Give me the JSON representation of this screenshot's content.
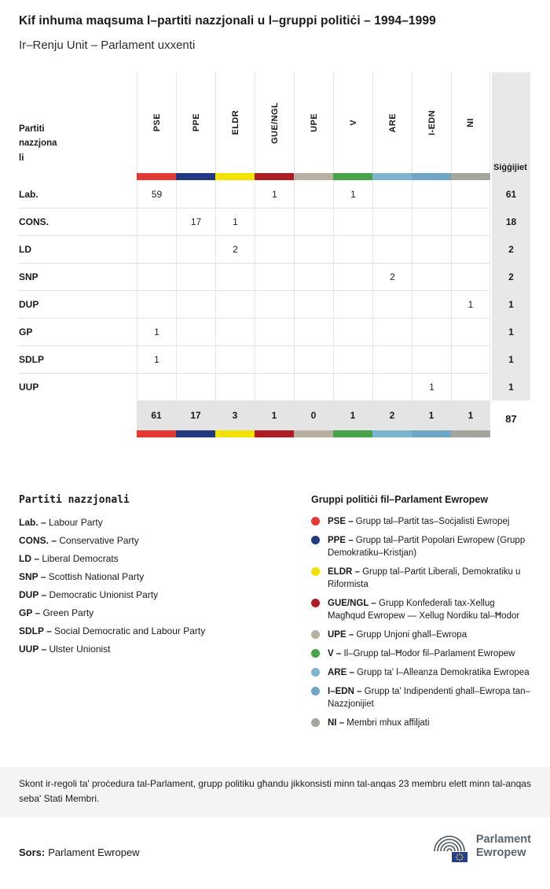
{
  "title": "Kif inhuma maqsuma l–partiti nazzjonali u l–gruppi politiċi – 1994–1999",
  "subtitle": "Ir–Renju Unit – Parlament uxxenti",
  "table": {
    "row_header_label": "Partiti\nnazzjona\nli",
    "seats_label": "Siġġijiet"
  },
  "chart_data": {
    "type": "table",
    "title": "Kif inhuma maqsuma l–partiti nazzjonali u l–gruppi politiċi – 1994–1999",
    "subtitle": "Ir–Renju Unit – Parlament uxxenti",
    "groups": [
      {
        "code": "PSE",
        "color": "#e23a33"
      },
      {
        "code": "PPE",
        "color": "#233a80"
      },
      {
        "code": "ELDR",
        "color": "#f3e200"
      },
      {
        "code": "GUE/NGL",
        "color": "#ad1d23"
      },
      {
        "code": "UPE",
        "color": "#b7b0a2"
      },
      {
        "code": "V",
        "color": "#47a44b"
      },
      {
        "code": "ARE",
        "color": "#7db4d0"
      },
      {
        "code": "I-EDN",
        "color": "#6ea6c6"
      },
      {
        "code": "NI",
        "color": "#a5a59d"
      }
    ],
    "rows": [
      {
        "party": "Lab.",
        "values": [
          59,
          null,
          null,
          1,
          null,
          1,
          null,
          null,
          null
        ],
        "total": 61
      },
      {
        "party": "CONS.",
        "values": [
          null,
          17,
          1,
          null,
          null,
          null,
          null,
          null,
          null
        ],
        "total": 18
      },
      {
        "party": "LD",
        "values": [
          null,
          null,
          2,
          null,
          null,
          null,
          null,
          null,
          null
        ],
        "total": 2
      },
      {
        "party": "SNP",
        "values": [
          null,
          null,
          null,
          null,
          null,
          null,
          2,
          null,
          null
        ],
        "total": 2
      },
      {
        "party": "DUP",
        "values": [
          null,
          null,
          null,
          null,
          null,
          null,
          null,
          null,
          1
        ],
        "total": 1
      },
      {
        "party": "GP",
        "values": [
          1,
          null,
          null,
          null,
          null,
          null,
          null,
          null,
          null
        ],
        "total": 1
      },
      {
        "party": "SDLP",
        "values": [
          1,
          null,
          null,
          null,
          null,
          null,
          null,
          null,
          null
        ],
        "total": 1
      },
      {
        "party": "UUP",
        "values": [
          null,
          null,
          null,
          null,
          null,
          null,
          null,
          1,
          null
        ],
        "total": 1
      }
    ],
    "column_totals": [
      61,
      17,
      3,
      1,
      0,
      1,
      2,
      1,
      1
    ],
    "grand_total": 87
  },
  "legend": {
    "parties_title": "Partiti nazzjonali",
    "parties": [
      {
        "abbr": "Lab. –",
        "name": "Labour Party"
      },
      {
        "abbr": "CONS. –",
        "name": "Conservative Party"
      },
      {
        "abbr": "LD –",
        "name": "Liberal Democrats"
      },
      {
        "abbr": "SNP –",
        "name": "Scottish National Party"
      },
      {
        "abbr": "DUP –",
        "name": "Democratic Unionist Party"
      },
      {
        "abbr": "GP –",
        "name": "Green Party"
      },
      {
        "abbr": "SDLP –",
        "name": "Social Democratic and Labour Party"
      },
      {
        "abbr": "UUP –",
        "name": "Ulster Unionist"
      }
    ],
    "groups_title": "Gruppi politiċi fil–Parlament Ewropew",
    "groups": [
      {
        "abbr": "PSE –",
        "name": "Grupp tal–Partit tas–Soċjalisti Ewropej"
      },
      {
        "abbr": "PPE –",
        "name": "Grupp tal–Partit Popolari Ewropew (Grupp Demokratiku–Kristjan)"
      },
      {
        "abbr": "ELDR –",
        "name": "Grupp tal–Partit Liberali, Demokratiku u Riformista"
      },
      {
        "abbr": "GUE/NGL –",
        "name": "Grupp Konfederali tax-Xellug Magħqud Ewropew — Xellug Nordiku tal–Ħodor"
      },
      {
        "abbr": "UPE –",
        "name": "Grupp Unjoni ghall–Ewropa"
      },
      {
        "abbr": "V –",
        "name": "Il–Grupp tal–Ħodor fil–Parlament Ewropew"
      },
      {
        "abbr": "ARE –",
        "name": "Grupp ta' l–Alleanza Demokratika Ewropea"
      },
      {
        "abbr": "I–EDN –",
        "name": "Grupp ta' Indipendenti ghall–Ewropa tan–Nazzjonijiet"
      },
      {
        "abbr": "NI –",
        "name": "Membri mhux affiljati"
      }
    ]
  },
  "footer_note": "Skont ir-regoli ta' proċedura tal-Parlament, grupp politiku għandu jikkonsisti minn tal-anqas 23 membru elett minn tal-anqas seba' Stati Membri.",
  "source": {
    "label": "Sors:",
    "name": "Parlament Ewropew"
  },
  "logo": {
    "line1": "Parlament",
    "line2": "Ewropew"
  }
}
